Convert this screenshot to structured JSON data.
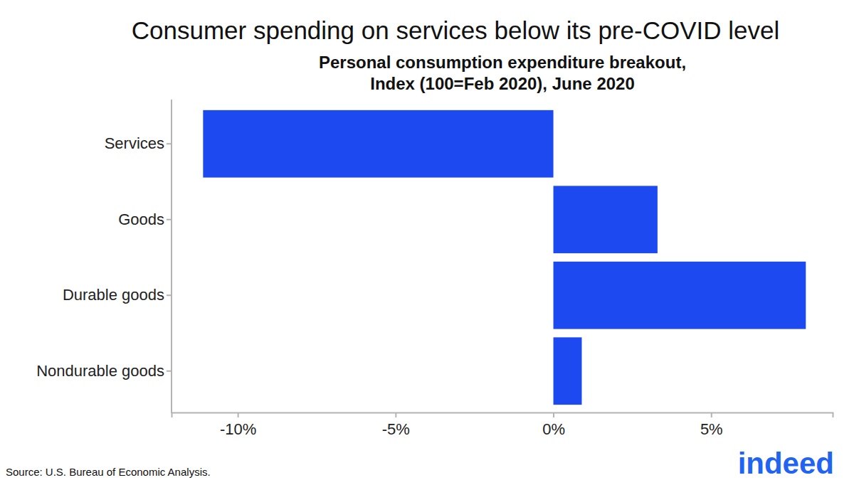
{
  "chart_data": {
    "type": "bar",
    "orientation": "horizontal",
    "title": "Consumer spending on services below its pre-COVID level",
    "subtitle": [
      "Personal consumption expenditure breakout,",
      "Index (100=Feb 2020), June 2020"
    ],
    "categories": [
      "Services",
      "Goods",
      "Durable goods",
      "Nondurable goods"
    ],
    "values": [
      -11.1,
      3.3,
      8.0,
      0.9
    ],
    "color": "#1c4af0",
    "xlim": [
      -12.1,
      8.85
    ],
    "xticks": [
      {
        "value": -10,
        "label": "-10%"
      },
      {
        "value": -5,
        "label": "-5%"
      },
      {
        "value": 0,
        "label": "0%"
      },
      {
        "value": 5,
        "label": "5%"
      }
    ],
    "grid": false,
    "source": "Source: U.S. Bureau of Economic Analysis.",
    "logo": "indeed"
  }
}
